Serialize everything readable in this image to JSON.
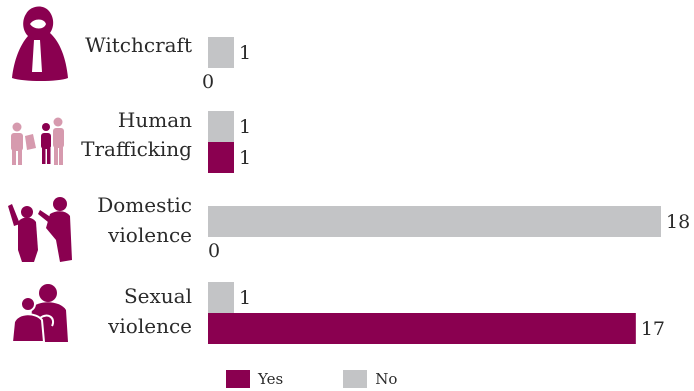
{
  "chart_data": {
    "type": "bar",
    "orientation": "horizontal",
    "categories": [
      {
        "lines": [
          "Witchcraft"
        ],
        "icon": "witchcraft-figure-icon"
      },
      {
        "lines": [
          "Human",
          "Trafficking"
        ],
        "icon": "human-trafficking-icon"
      },
      {
        "lines": [
          "Domestic",
          "violence"
        ],
        "icon": "domestic-violence-icon"
      },
      {
        "lines": [
          "Sexual",
          "violence"
        ],
        "icon": "sexual-violence-icon"
      }
    ],
    "series": [
      {
        "name": "No",
        "color": "#c3c4c6",
        "values": [
          1,
          1,
          18,
          1
        ]
      },
      {
        "name": "Yes",
        "color": "#8a0050",
        "values": [
          0,
          1,
          0,
          17
        ]
      }
    ],
    "xlim": [
      0,
      18
    ],
    "grid": false,
    "legend": "bottom",
    "title": "",
    "xlabel": "",
    "ylabel": ""
  },
  "legend": {
    "yes_label": "Yes",
    "no_label": "No"
  },
  "colors": {
    "yes": "#8a0050",
    "no": "#c3c4c6",
    "icon": "#8a0050",
    "icon_light": "#d69aae"
  }
}
